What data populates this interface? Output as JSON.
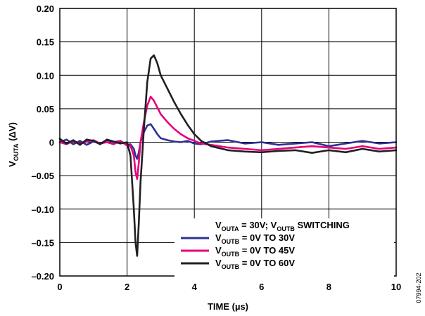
{
  "chart_data": {
    "type": "line",
    "xlabel": "TIME (µs)",
    "ylabel": {
      "base": "V",
      "sub": "OUTA",
      "rest": " (ΔV)"
    },
    "xlim": [
      0,
      10
    ],
    "ylim": [
      -0.2,
      0.2
    ],
    "xticks": [
      0,
      2,
      4,
      6,
      8,
      10
    ],
    "xtick_labels": [
      "0",
      "2",
      "4",
      "6",
      "8",
      "10"
    ],
    "yticks": [
      0.2,
      0.15,
      0.1,
      0.05,
      0,
      -0.05,
      -0.1,
      -0.15,
      -0.2
    ],
    "ytick_labels": [
      "0.20",
      "0.15",
      "0.10",
      "0.05",
      "0",
      "–0.05",
      "–0.10",
      "–0.15",
      "–0.20"
    ],
    "grid": true,
    "legend_position": "bottom-right",
    "legend_title": {
      "p1": "V",
      "s1": "OUTA",
      "p2": " = 30V; V",
      "s2": "OUTB",
      "p3": " SWITCHING"
    },
    "series": [
      {
        "legend": {
          "base": "V",
          "sub": "OUTB",
          "rest": " = 0V TO 30V"
        },
        "color": "#2e3192",
        "x": [
          0,
          0.2,
          0.4,
          0.6,
          0.8,
          1.0,
          1.2,
          1.4,
          1.6,
          1.8,
          2.0,
          2.1,
          2.2,
          2.25,
          2.3,
          2.35,
          2.4,
          2.5,
          2.6,
          2.7,
          2.8,
          2.9,
          3.0,
          3.2,
          3.4,
          3.6,
          3.8,
          4.0,
          4.2,
          4.5,
          5.0,
          5.5,
          6.0,
          6.5,
          7.0,
          7.5,
          8.0,
          8.5,
          9.0,
          9.5,
          10.0
        ],
        "y": [
          0.0,
          0.004,
          -0.003,
          0.002,
          -0.004,
          0.001,
          -0.002,
          0.003,
          0.0,
          0.002,
          -0.004,
          -0.003,
          -0.01,
          -0.02,
          -0.025,
          -0.015,
          0.0,
          0.015,
          0.025,
          0.027,
          0.02,
          0.012,
          0.006,
          0.003,
          0.001,
          0.0,
          0.002,
          -0.002,
          -0.003,
          0.001,
          0.003,
          -0.002,
          0.0,
          -0.004,
          -0.002,
          0.0,
          -0.006,
          -0.002,
          0.002,
          -0.002,
          0.0
        ]
      },
      {
        "legend": {
          "base": "V",
          "sub": "OUTB",
          "rest": " = 0V TO 45V"
        },
        "color": "#e6007e",
        "x": [
          0,
          0.2,
          0.4,
          0.6,
          0.8,
          1.0,
          1.2,
          1.4,
          1.6,
          1.8,
          2.0,
          2.1,
          2.2,
          2.25,
          2.3,
          2.35,
          2.4,
          2.5,
          2.6,
          2.7,
          2.8,
          2.9,
          3.0,
          3.2,
          3.4,
          3.6,
          3.8,
          4.0,
          4.2,
          4.5,
          5.0,
          5.5,
          6.0,
          6.5,
          7.0,
          7.5,
          8.0,
          8.5,
          9.0,
          9.5,
          10.0
        ],
        "y": [
          0.0,
          -0.003,
          0.002,
          -0.002,
          0.001,
          0.003,
          -0.002,
          0.0,
          -0.003,
          0.002,
          -0.005,
          -0.005,
          -0.02,
          -0.045,
          -0.055,
          -0.03,
          0.0,
          0.03,
          0.055,
          0.068,
          0.062,
          0.052,
          0.042,
          0.03,
          0.02,
          0.012,
          0.006,
          0.002,
          -0.002,
          -0.004,
          -0.008,
          -0.01,
          -0.012,
          -0.01,
          -0.008,
          -0.006,
          -0.008,
          -0.01,
          -0.006,
          -0.01,
          -0.008
        ]
      },
      {
        "legend": {
          "base": "V",
          "sub": "OUTB",
          "rest": " = 0V TO 60V"
        },
        "color": "#231f20",
        "x": [
          0,
          0.2,
          0.4,
          0.6,
          0.8,
          1.0,
          1.2,
          1.4,
          1.6,
          1.8,
          2.0,
          2.1,
          2.2,
          2.25,
          2.3,
          2.35,
          2.4,
          2.5,
          2.6,
          2.7,
          2.8,
          2.9,
          3.0,
          3.2,
          3.4,
          3.6,
          3.8,
          4.0,
          4.2,
          4.5,
          5.0,
          5.5,
          6.0,
          6.5,
          7.0,
          7.5,
          8.0,
          8.5,
          9.0,
          9.5,
          10.0
        ],
        "y": [
          0.005,
          -0.002,
          0.003,
          -0.004,
          0.004,
          0.002,
          -0.003,
          0.004,
          0.001,
          -0.002,
          0.0,
          -0.02,
          -0.1,
          -0.15,
          -0.17,
          -0.12,
          -0.06,
          0.02,
          0.09,
          0.125,
          0.13,
          0.118,
          0.1,
          0.08,
          0.06,
          0.042,
          0.026,
          0.012,
          0.002,
          -0.006,
          -0.012,
          -0.014,
          -0.015,
          -0.013,
          -0.012,
          -0.016,
          -0.012,
          -0.015,
          -0.01,
          -0.014,
          -0.012
        ]
      }
    ]
  },
  "figure_id": "07994-202"
}
